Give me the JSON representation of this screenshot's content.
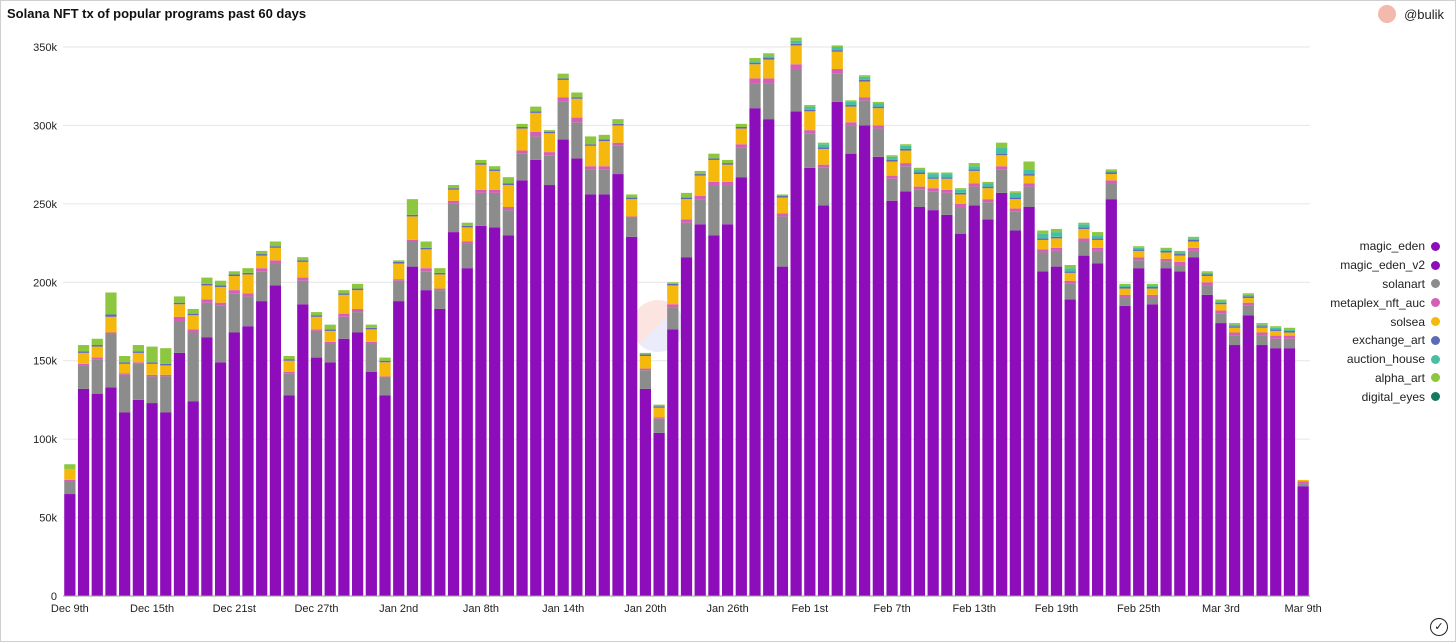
{
  "header": {
    "title": "Solana NFT tx of popular programs past 60 days",
    "author": "@bulik"
  },
  "colors": {
    "magic_eden": "#8e0dbb",
    "magic_eden_v2": "#8e0dbb",
    "solanart": "#8c8c8c",
    "metaplex_nft_auc": "#d55fb6",
    "solsea": "#f5b80d",
    "exchange_art": "#5b6bb8",
    "auction_house": "#46bfa3",
    "alpha_art": "#8dc63f",
    "digital_eyes": "#127a5e"
  },
  "legend": [
    {
      "key": "magic_eden",
      "label": "magic_eden"
    },
    {
      "key": "magic_eden_v2",
      "label": "magic_eden_v2"
    },
    {
      "key": "solanart",
      "label": "solanart"
    },
    {
      "key": "metaplex_nft_auc",
      "label": "metaplex_nft_auc"
    },
    {
      "key": "solsea",
      "label": "solsea"
    },
    {
      "key": "exchange_art",
      "label": "exchange_art"
    },
    {
      "key": "auction_house",
      "label": "auction_house"
    },
    {
      "key": "alpha_art",
      "label": "alpha_art"
    },
    {
      "key": "digital_eyes",
      "label": "digital_eyes"
    }
  ],
  "chart_data": {
    "type": "bar",
    "stacked": true,
    "title": "Solana NFT tx of popular programs past 60 days",
    "ylim": [
      0,
      350000
    ],
    "y_ticks": [
      {
        "value": 0,
        "label": "0"
      },
      {
        "value": 50000,
        "label": "50k"
      },
      {
        "value": 100000,
        "label": "100k"
      },
      {
        "value": 150000,
        "label": "150k"
      },
      {
        "value": 200000,
        "label": "200k"
      },
      {
        "value": 250000,
        "label": "250k"
      },
      {
        "value": 300000,
        "label": "300k"
      },
      {
        "value": 350000,
        "label": "350k"
      }
    ],
    "x_ticks": [
      {
        "index": 0,
        "label": "Dec 9th"
      },
      {
        "index": 6,
        "label": "Dec 15th"
      },
      {
        "index": 12,
        "label": "Dec 21st"
      },
      {
        "index": 18,
        "label": "Dec 27th"
      },
      {
        "index": 24,
        "label": "Jan 2nd"
      },
      {
        "index": 30,
        "label": "Jan 8th"
      },
      {
        "index": 36,
        "label": "Jan 14th"
      },
      {
        "index": 42,
        "label": "Jan 20th"
      },
      {
        "index": 48,
        "label": "Jan 26th"
      },
      {
        "index": 54,
        "label": "Feb 1st"
      },
      {
        "index": 60,
        "label": "Feb 7th"
      },
      {
        "index": 66,
        "label": "Feb 13th"
      },
      {
        "index": 72,
        "label": "Feb 19th"
      },
      {
        "index": 78,
        "label": "Feb 25th"
      },
      {
        "index": 84,
        "label": "Mar 3rd"
      },
      {
        "index": 90,
        "label": "Mar 9th"
      }
    ],
    "x": [
      "2021-12-09",
      "2021-12-10",
      "2021-12-11",
      "2021-12-12",
      "2021-12-13",
      "2021-12-14",
      "2021-12-15",
      "2021-12-16",
      "2021-12-17",
      "2021-12-18",
      "2021-12-19",
      "2021-12-20",
      "2021-12-21",
      "2021-12-22",
      "2021-12-23",
      "2021-12-24",
      "2021-12-25",
      "2021-12-26",
      "2021-12-27",
      "2021-12-28",
      "2021-12-29",
      "2021-12-30",
      "2021-12-31",
      "2022-01-01",
      "2022-01-02",
      "2022-01-03",
      "2022-01-04",
      "2022-01-05",
      "2022-01-06",
      "2022-01-07",
      "2022-01-08",
      "2022-01-09",
      "2022-01-10",
      "2022-01-11",
      "2022-01-12",
      "2022-01-13",
      "2022-01-14",
      "2022-01-15",
      "2022-01-16",
      "2022-01-17",
      "2022-01-18",
      "2022-01-19",
      "2022-01-20",
      "2022-01-21",
      "2022-01-22",
      "2022-01-23",
      "2022-01-24",
      "2022-01-25",
      "2022-01-26",
      "2022-01-27",
      "2022-01-28",
      "2022-01-29",
      "2022-01-30",
      "2022-01-31",
      "2022-02-01",
      "2022-02-02",
      "2022-02-03",
      "2022-02-04",
      "2022-02-05",
      "2022-02-06",
      "2022-02-07",
      "2022-02-08",
      "2022-02-09",
      "2022-02-10",
      "2022-02-11",
      "2022-02-12",
      "2022-02-13",
      "2022-02-14",
      "2022-02-15",
      "2022-02-16",
      "2022-02-17",
      "2022-02-18",
      "2022-02-19",
      "2022-02-20",
      "2022-02-21",
      "2022-02-22",
      "2022-02-23",
      "2022-02-24",
      "2022-02-25",
      "2022-02-26",
      "2022-02-27",
      "2022-02-28",
      "2022-03-01",
      "2022-03-02",
      "2022-03-03",
      "2022-03-04",
      "2022-03-05",
      "2022-03-06",
      "2022-03-07",
      "2022-03-08",
      "2022-03-09"
    ],
    "series": [
      {
        "name": "magic_eden",
        "values": [
          65000,
          132000,
          129000,
          133000,
          117000,
          125000,
          123000,
          117000,
          155000,
          124000,
          165000,
          149000,
          168000,
          172000,
          188000,
          198000,
          128000,
          186000,
          152000,
          149000,
          164000,
          168000,
          143000,
          128000,
          188000,
          210000,
          195000,
          183000,
          232000,
          209000,
          236000,
          235000,
          230000,
          265000,
          278000,
          262000,
          291000,
          279000,
          256000,
          256000,
          269000,
          229000,
          132000,
          104000,
          170000,
          216000,
          237000,
          230000,
          237000,
          267000,
          311000,
          304000,
          210000,
          309000,
          273000,
          249000,
          315000,
          282000,
          300000,
          280000,
          252000,
          258000,
          248000,
          246000,
          243000,
          231000,
          249000,
          240000,
          257000,
          233000,
          248000,
          207000,
          210000,
          189000,
          217000,
          212000,
          253000,
          185000,
          209000,
          186000,
          209000,
          207000,
          216000,
          192000,
          174000,
          160000,
          179000,
          160000,
          158000,
          158000,
          70000
        ]
      },
      {
        "name": "magic_eden_v2",
        "values": [
          0,
          0,
          0,
          0,
          0,
          0,
          0,
          0,
          0,
          0,
          0,
          0,
          0,
          0,
          0,
          0,
          0,
          0,
          0,
          0,
          0,
          0,
          0,
          0,
          0,
          0,
          0,
          0,
          0,
          0,
          0,
          0,
          0,
          0,
          0,
          0,
          0,
          0,
          0,
          0,
          0,
          0,
          0,
          0,
          0,
          0,
          0,
          0,
          0,
          0,
          0,
          0,
          0,
          0,
          0,
          0,
          0,
          0,
          0,
          0,
          0,
          0,
          0,
          0,
          0,
          0,
          0,
          0,
          0,
          0,
          0,
          0,
          0,
          0,
          0,
          0,
          0,
          0,
          0,
          0,
          0,
          0,
          0,
          0,
          0,
          0,
          0,
          0,
          0,
          0,
          0
        ]
      },
      {
        "name": "solanart",
        "values": [
          8000,
          15000,
          22000,
          34000,
          24000,
          23000,
          17000,
          23000,
          20000,
          44000,
          22000,
          36000,
          25000,
          19000,
          19000,
          14000,
          14000,
          15000,
          17000,
          12000,
          14000,
          13000,
          18000,
          11000,
          13000,
          16000,
          12000,
          12000,
          18000,
          16000,
          21000,
          22000,
          16000,
          17000,
          15000,
          19000,
          24000,
          23000,
          16000,
          16000,
          18000,
          12000,
          12000,
          9000,
          14000,
          22000,
          16000,
          32000,
          25000,
          19000,
          16000,
          23000,
          32000,
          27000,
          22000,
          24000,
          18000,
          18000,
          16000,
          18000,
          14000,
          16000,
          11000,
          12000,
          14000,
          17000,
          12000,
          11000,
          15000,
          12000,
          13000,
          12000,
          10000,
          10000,
          9000,
          8000,
          10000,
          5000,
          5000,
          4000,
          4000,
          4000,
          4000,
          6000,
          6000,
          6000,
          6000,
          6000,
          6000,
          6000,
          2000
        ]
      },
      {
        "name": "metaplex_nft_auc",
        "values": [
          1000,
          1000,
          1000,
          1000,
          1000,
          1000,
          1000,
          1000,
          3000,
          2000,
          2000,
          2000,
          2000,
          2000,
          2000,
          2000,
          1000,
          2000,
          1000,
          1000,
          2000,
          2000,
          1000,
          1000,
          1000,
          1000,
          2000,
          1000,
          2000,
          1000,
          2000,
          2000,
          2000,
          2000,
          3000,
          2000,
          3000,
          3000,
          2000,
          2000,
          2000,
          1000,
          1000,
          1000,
          2000,
          2000,
          2000,
          2000,
          2000,
          2000,
          3000,
          3000,
          2000,
          3000,
          2000,
          2000,
          3000,
          2000,
          2000,
          2000,
          2000,
          2000,
          2000,
          2000,
          2000,
          2000,
          2000,
          2000,
          2000,
          2000,
          2000,
          2000,
          2000,
          2000,
          2000,
          2000,
          2000,
          2000,
          2000,
          2000,
          2000,
          2000,
          2000,
          2000,
          2000,
          2000,
          2000,
          2000,
          2000,
          2000,
          1000
        ]
      },
      {
        "name": "solsea",
        "values": [
          7000,
          7000,
          7000,
          10000,
          6000,
          6000,
          7000,
          6000,
          8000,
          9000,
          9000,
          10000,
          9000,
          12000,
          8000,
          8000,
          7000,
          10000,
          8000,
          7000,
          12000,
          12000,
          8000,
          9000,
          10000,
          15000,
          12000,
          9000,
          7000,
          9000,
          16000,
          12000,
          14000,
          14000,
          12000,
          12000,
          11000,
          12000,
          13000,
          16000,
          11000,
          11000,
          8000,
          6000,
          12000,
          13000,
          13000,
          14000,
          11000,
          10000,
          9000,
          12000,
          10000,
          12000,
          12000,
          10000,
          11000,
          10000,
          10000,
          11000,
          9000,
          8000,
          8000,
          6000,
          7000,
          6000,
          8000,
          7000,
          7000,
          6000,
          5000,
          6000,
          6000,
          5000,
          6000,
          5000,
          4000,
          4000,
          4000,
          4000,
          4000,
          4000,
          4000,
          4000,
          4000,
          3000,
          3000,
          3000,
          3000,
          2000,
          1000
        ]
      },
      {
        "name": "exchange_art",
        "values": [
          0,
          1000,
          1000,
          1500,
          1000,
          1000,
          1000,
          1000,
          1000,
          1000,
          1000,
          1000,
          1000,
          1000,
          1000,
          1000,
          1000,
          1000,
          1000,
          1000,
          1000,
          1000,
          1000,
          1000,
          1000,
          1000,
          1000,
          1000,
          1000,
          1000,
          1000,
          1000,
          1000,
          1000,
          1000,
          1000,
          1000,
          1000,
          1000,
          1000,
          1000,
          1000,
          1000,
          1000,
          1000,
          1000,
          1000,
          1000,
          1000,
          1000,
          1000,
          1000,
          1000,
          1000,
          1000,
          1000,
          1000,
          1000,
          1000,
          1000,
          1000,
          1000,
          1000,
          1000,
          1000,
          1000,
          1000,
          1000,
          1000,
          1000,
          1000,
          1000,
          1000,
          1000,
          1000,
          1000,
          1000,
          1000,
          1000,
          1000,
          1000,
          1000,
          1000,
          1000,
          1000,
          1000,
          1000,
          1000,
          1000,
          1000,
          0
        ]
      },
      {
        "name": "auction_house",
        "values": [
          0,
          0,
          0,
          0,
          0,
          0,
          0,
          0,
          0,
          0,
          0,
          0,
          0,
          0,
          0,
          0,
          0,
          0,
          0,
          0,
          0,
          0,
          0,
          0,
          0,
          0,
          0,
          0,
          0,
          0,
          0,
          0,
          0,
          0,
          0,
          0,
          0,
          0,
          0,
          0,
          0,
          0,
          0,
          0,
          0,
          0,
          0,
          0,
          0,
          0,
          1000,
          1000,
          0,
          2000,
          2000,
          2000,
          2000,
          2000,
          2000,
          2000,
          2000,
          2000,
          2000,
          2000,
          2000,
          2000,
          2000,
          2000,
          4000,
          3000,
          3000,
          3000,
          3000,
          2000,
          2000,
          2000,
          1000,
          1000,
          1000,
          1000,
          1000,
          1000,
          1000,
          1000,
          1000,
          1000,
          1000,
          1000,
          1000,
          1000,
          0
        ]
      },
      {
        "name": "alpha_art",
        "values": [
          3000,
          4000,
          4000,
          14000,
          4000,
          4000,
          10000,
          10000,
          4000,
          3000,
          4000,
          3000,
          2000,
          3000,
          2000,
          3000,
          2000,
          2000,
          2000,
          3000,
          2000,
          3000,
          2000,
          2000,
          1000,
          10000,
          4000,
          3000,
          2000,
          2000,
          2000,
          2000,
          4000,
          2000,
          3000,
          1000,
          3000,
          3000,
          5000,
          3000,
          3000,
          2000,
          1000,
          1000,
          1000,
          3000,
          2000,
          3000,
          2000,
          2000,
          2000,
          2000,
          1000,
          2000,
          1000,
          1000,
          1000,
          1000,
          1000,
          1000,
          1000,
          1000,
          1000,
          1000,
          1000,
          1000,
          2000,
          1000,
          3000,
          1000,
          5000,
          2000,
          2000,
          2000,
          1000,
          2000,
          1000,
          1000,
          1000,
          1000,
          1000,
          1000,
          1000,
          1000,
          1000,
          1000,
          1000,
          1000,
          1000,
          1000,
          0
        ]
      },
      {
        "name": "digital_eyes",
        "values": [
          0,
          0,
          0,
          0,
          0,
          0,
          0,
          0,
          0,
          0,
          0,
          0,
          0,
          0,
          0,
          0,
          0,
          0,
          0,
          0,
          0,
          0,
          0,
          0,
          0,
          0,
          0,
          0,
          0,
          0,
          0,
          0,
          0,
          0,
          0,
          0,
          0,
          0,
          0,
          0,
          0,
          0,
          0,
          0,
          0,
          0,
          0,
          0,
          0,
          0,
          0,
          0,
          0,
          0,
          0,
          0,
          0,
          0,
          0,
          0,
          0,
          0,
          0,
          0,
          0,
          0,
          0,
          0,
          0,
          0,
          0,
          0,
          0,
          0,
          0,
          0,
          0,
          0,
          0,
          0,
          0,
          0,
          0,
          0,
          0,
          0,
          0,
          0,
          0,
          0,
          0
        ]
      }
    ],
    "grid": "horizontal",
    "legend_position": "right"
  }
}
